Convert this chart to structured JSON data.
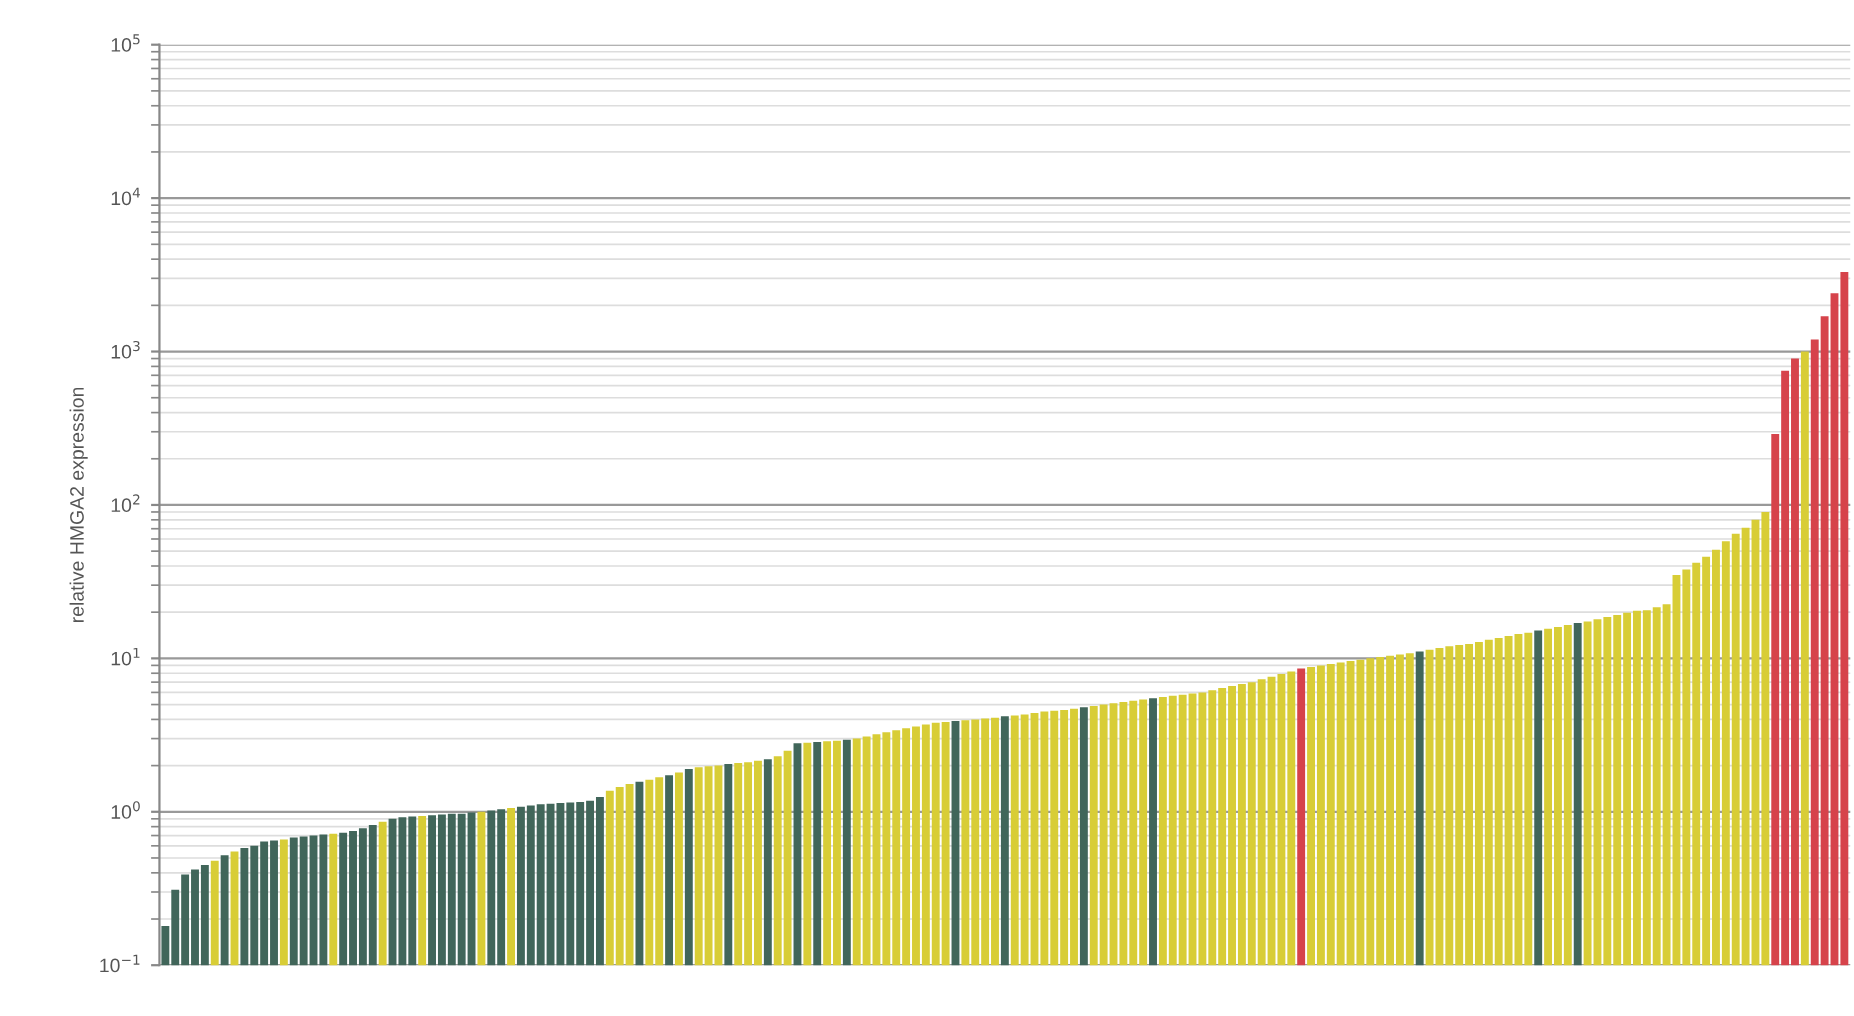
{
  "chart_data": {
    "type": "bar",
    "ylabel": "relative HMGA2 expression",
    "log": true,
    "grid": "y",
    "tick_labels": "y",
    "ylim": [
      0.1,
      100000
    ],
    "yticks": [
      {
        "value": 0.1,
        "label": "10$^{−1}$"
      },
      {
        "value": 1,
        "label": "10$^{0}$"
      },
      {
        "value": 10,
        "label": "10$^{1}$"
      },
      {
        "value": 100,
        "label": "10$^{2}$"
      },
      {
        "value": 1000,
        "label": "10$^{3}$"
      },
      {
        "value": 10000,
        "label": "10$^{4}$"
      },
      {
        "value": 100000,
        "label": "10$^{5}$"
      }
    ],
    "categories": [
      null,
      null,
      null,
      null,
      null,
      null,
      null,
      null,
      null,
      null,
      null,
      null,
      null,
      null,
      null,
      null,
      null,
      null,
      null,
      null,
      null,
      null,
      null,
      null,
      null,
      null,
      null,
      null,
      null,
      null,
      null,
      null,
      null,
      null,
      null,
      null,
      null,
      null,
      null,
      null,
      null,
      null,
      null,
      null,
      null,
      null,
      null,
      null,
      null,
      null,
      null,
      null,
      null,
      null,
      null,
      null,
      null,
      null,
      null,
      null,
      null,
      null,
      null,
      null,
      null,
      null,
      null,
      null,
      null,
      null,
      null,
      null,
      null,
      null,
      null,
      null,
      null,
      null,
      null,
      null,
      null,
      null,
      null,
      null,
      null,
      null,
      null,
      null,
      null,
      null,
      null,
      null,
      null,
      null,
      null,
      null,
      null,
      null,
      null,
      null,
      null,
      null,
      null,
      null,
      null,
      null,
      null,
      null,
      null,
      null,
      null,
      null,
      null,
      null,
      null,
      null,
      null,
      null,
      null,
      null,
      null,
      null,
      null,
      null,
      null,
      null,
      null,
      null,
      null,
      null,
      null,
      null,
      null,
      null,
      null,
      null,
      null,
      null,
      null,
      null,
      null,
      null,
      null,
      null,
      null,
      null,
      null,
      null,
      null,
      null,
      null,
      null,
      null,
      null,
      null,
      null,
      null,
      null,
      null,
      null,
      null,
      null,
      null,
      null,
      null,
      null,
      null,
      null,
      null,
      null,
      null
    ],
    "values": [
      0.18,
      0.31,
      0.39,
      0.42,
      0.45,
      0.48,
      0.52,
      0.55,
      0.58,
      0.6,
      0.64,
      0.65,
      0.66,
      0.68,
      0.69,
      0.7,
      0.71,
      0.72,
      0.73,
      0.75,
      0.78,
      0.82,
      0.86,
      0.9,
      0.92,
      0.93,
      0.94,
      0.95,
      0.96,
      0.97,
      0.97,
      0.99,
      1.0,
      1.02,
      1.04,
      1.06,
      1.08,
      1.1,
      1.12,
      1.13,
      1.14,
      1.15,
      1.16,
      1.18,
      1.25,
      1.37,
      1.45,
      1.52,
      1.57,
      1.62,
      1.68,
      1.73,
      1.8,
      1.9,
      1.95,
      1.98,
      2.0,
      2.05,
      2.08,
      2.1,
      2.15,
      2.2,
      2.3,
      2.5,
      2.8,
      2.82,
      2.85,
      2.88,
      2.9,
      2.95,
      3.0,
      3.1,
      3.2,
      3.3,
      3.4,
      3.5,
      3.6,
      3.7,
      3.8,
      3.85,
      3.9,
      3.95,
      4.0,
      4.05,
      4.1,
      4.2,
      4.25,
      4.3,
      4.4,
      4.5,
      4.55,
      4.6,
      4.7,
      4.8,
      4.9,
      5.0,
      5.1,
      5.2,
      5.3,
      5.4,
      5.5,
      5.6,
      5.7,
      5.8,
      5.9,
      6.0,
      6.2,
      6.4,
      6.6,
      6.8,
      7.0,
      7.3,
      7.6,
      7.9,
      8.2,
      8.6,
      8.8,
      9.0,
      9.2,
      9.4,
      9.6,
      9.8,
      10.0,
      10.2,
      10.4,
      10.6,
      10.8,
      11.1,
      11.4,
      11.7,
      12.0,
      12.2,
      12.4,
      12.8,
      13.2,
      13.6,
      14.0,
      14.4,
      14.7,
      15.2,
      15.6,
      16.0,
      16.5,
      17.0,
      17.4,
      18.0,
      18.6,
      19.2,
      19.8,
      20.4,
      20.6,
      21.5,
      22.5,
      35,
      38,
      42,
      46,
      51,
      58,
      65,
      71,
      80,
      90,
      290,
      750,
      900,
      1000,
      1200,
      1700,
      2400,
      3300
    ],
    "colors": [
      "#41665a",
      "#41665a",
      "#41665a",
      "#41665a",
      "#41665a",
      "#d8cd36",
      "#41665a",
      "#d8cd36",
      "#41665a",
      "#41665a",
      "#41665a",
      "#41665a",
      "#d8cd36",
      "#41665a",
      "#41665a",
      "#41665a",
      "#41665a",
      "#d8cd36",
      "#41665a",
      "#41665a",
      "#41665a",
      "#41665a",
      "#d8cd36",
      "#41665a",
      "#41665a",
      "#41665a",
      "#d8cd36",
      "#41665a",
      "#41665a",
      "#41665a",
      "#41665a",
      "#41665a",
      "#d8cd36",
      "#41665a",
      "#41665a",
      "#d8cd36",
      "#41665a",
      "#41665a",
      "#41665a",
      "#41665a",
      "#41665a",
      "#41665a",
      "#41665a",
      "#41665a",
      "#41665a",
      "#d8cd36",
      "#d8cd36",
      "#d8cd36",
      "#41665a",
      "#d8cd36",
      "#d8cd36",
      "#41665a",
      "#d8cd36",
      "#41665a",
      "#d8cd36",
      "#d8cd36",
      "#d8cd36",
      "#41665a",
      "#d8cd36",
      "#d8cd36",
      "#d8cd36",
      "#41665a",
      "#d8cd36",
      "#d8cd36",
      "#41665a",
      "#d8cd36",
      "#41665a",
      "#d8cd36",
      "#d8cd36",
      "#41665a",
      "#d8cd36",
      "#d8cd36",
      "#d8cd36",
      "#d8cd36",
      "#d8cd36",
      "#d8cd36",
      "#d8cd36",
      "#d8cd36",
      "#d8cd36",
      "#d8cd36",
      "#41665a",
      "#d8cd36",
      "#d8cd36",
      "#d8cd36",
      "#d8cd36",
      "#41665a",
      "#d8cd36",
      "#d8cd36",
      "#d8cd36",
      "#d8cd36",
      "#d8cd36",
      "#d8cd36",
      "#d8cd36",
      "#41665a",
      "#d8cd36",
      "#d8cd36",
      "#d8cd36",
      "#d8cd36",
      "#d8cd36",
      "#d8cd36",
      "#41665a",
      "#d8cd36",
      "#d8cd36",
      "#d8cd36",
      "#d8cd36",
      "#d8cd36",
      "#d8cd36",
      "#d8cd36",
      "#d8cd36",
      "#d8cd36",
      "#d8cd36",
      "#d8cd36",
      "#d8cd36",
      "#d8cd36",
      "#d8cd36",
      "#d6434b",
      "#d8cd36",
      "#d8cd36",
      "#d8cd36",
      "#d8cd36",
      "#d8cd36",
      "#d8cd36",
      "#d8cd36",
      "#d8cd36",
      "#d8cd36",
      "#d8cd36",
      "#d8cd36",
      "#41665a",
      "#d8cd36",
      "#d8cd36",
      "#d8cd36",
      "#d8cd36",
      "#d8cd36",
      "#d8cd36",
      "#d8cd36",
      "#d8cd36",
      "#d8cd36",
      "#d8cd36",
      "#d8cd36",
      "#41665a",
      "#d8cd36",
      "#d8cd36",
      "#d8cd36",
      "#41665a",
      "#d8cd36",
      "#d8cd36",
      "#d8cd36",
      "#d8cd36",
      "#d8cd36",
      "#d8cd36",
      "#d8cd36",
      "#d8cd36",
      "#d8cd36",
      "#d8cd36",
      "#d8cd36",
      "#d8cd36",
      "#d8cd36",
      "#d8cd36",
      "#d8cd36",
      "#d8cd36",
      "#d8cd36",
      "#d8cd36",
      "#d8cd36",
      "#d6434b",
      "#d6434b",
      "#d6434b",
      "#d8cd36",
      "#d6434b",
      "#d6434b",
      "#d6434b",
      "#d6434b"
    ]
  }
}
